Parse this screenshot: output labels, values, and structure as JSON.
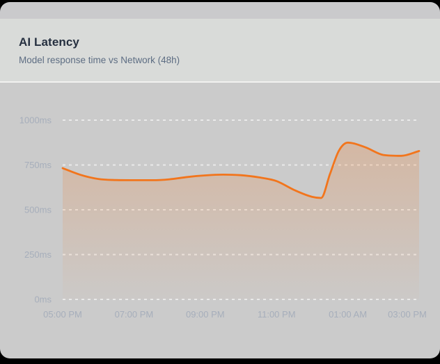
{
  "card": {
    "title": "AI Latency",
    "subtitle": "Model response time vs Network (48h)",
    "colors": {
      "page_background": "#000000",
      "top_band": "#cacacc",
      "header_bg": "#d9dbd9",
      "divider": "#f2f2f0",
      "panel_bg": "#cbcbcb",
      "title_text": "#263040",
      "subtitle_text": "#5d6d83"
    }
  },
  "chart_data": {
    "type": "area",
    "title": "AI Latency",
    "subtitle": "Model response time vs Network (48h)",
    "xlabel": "",
    "ylabel": "",
    "ylim": [
      0,
      1000
    ],
    "grid": "horizontal-dashed",
    "legend": "none",
    "y_ticks": [
      {
        "value": 1000,
        "label": "1000ms"
      },
      {
        "value": 750,
        "label": "750ms"
      },
      {
        "value": 500,
        "label": "500ms"
      },
      {
        "value": 250,
        "label": "250ms"
      },
      {
        "value": 0,
        "label": "0ms"
      }
    ],
    "x_ticks": [
      {
        "hour": 0,
        "label": "05:00 PM"
      },
      {
        "hour": 2,
        "label": "07:00 PM"
      },
      {
        "hour": 4,
        "label": "09:00 PM"
      },
      {
        "hour": 6,
        "label": "11:00 PM"
      },
      {
        "hour": 8,
        "label": "01:00 AM"
      },
      {
        "hour": 10,
        "label": "03:00 PM"
      }
    ],
    "series": [
      {
        "name": "Model response time (ms)",
        "smoothing": "monotone",
        "points": [
          {
            "h": 0,
            "v": 732
          },
          {
            "h": 0.5,
            "v": 695
          },
          {
            "h": 1,
            "v": 672
          },
          {
            "h": 1.5,
            "v": 666
          },
          {
            "h": 2,
            "v": 665
          },
          {
            "h": 2.5,
            "v": 665
          },
          {
            "h": 3,
            "v": 670
          },
          {
            "h": 3.5,
            "v": 683
          },
          {
            "h": 4,
            "v": 692
          },
          {
            "h": 4.5,
            "v": 696
          },
          {
            "h": 5,
            "v": 693
          },
          {
            "h": 5.5,
            "v": 681
          },
          {
            "h": 6,
            "v": 660
          },
          {
            "h": 6.5,
            "v": 610
          },
          {
            "h": 7,
            "v": 572
          },
          {
            "h": 7.25,
            "v": 566
          },
          {
            "h": 7.5,
            "v": 700
          },
          {
            "h": 7.75,
            "v": 830
          },
          {
            "h": 8,
            "v": 875
          },
          {
            "h": 8.5,
            "v": 848
          },
          {
            "h": 9,
            "v": 806
          },
          {
            "h": 9.5,
            "v": 801
          },
          {
            "h": 10,
            "v": 828
          }
        ]
      }
    ],
    "colors": {
      "line": "#f2751c",
      "fill_top": "rgba(242,117,28,0.26)",
      "fill_bottom": "rgba(242,117,28,0.02)",
      "grid_line": "#ededed",
      "axis_label": "#a6aebb"
    }
  }
}
